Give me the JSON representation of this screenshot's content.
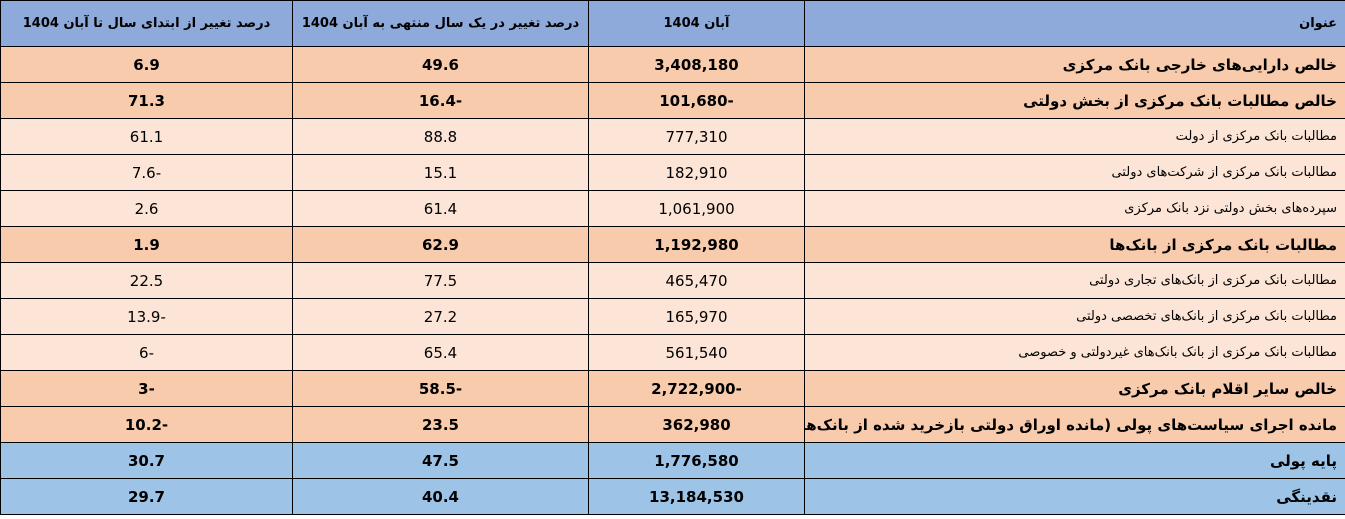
{
  "table": {
    "header": [
      "عنوان",
      "آبان 1404",
      "درصد تغییر در یک سال منتهی به آبان 1404",
      "درصد تغییر از ابتدای سال تا آبان 1404"
    ],
    "rows": [
      [
        "خالص دارایی‌های خارجی بانک مرکزی",
        "3,408,180",
        "49.6",
        "6.9"
      ],
      [
        "خالص مطالبات بانک مرکزی از بخش دولتی",
        "-101,680",
        "-16.4",
        "71.3"
      ],
      [
        "مطالبات بانک مرکزی از دولت",
        "777,310",
        "88.8",
        "61.1"
      ],
      [
        "مطالبات بانک مرکزی از شرکت‌های دولتی",
        "182,910",
        "15.1",
        "-7.6"
      ],
      [
        "سپرده‌های بخش دولتی نزد بانک مرکزی",
        "1,061,900",
        "61.4",
        "2.6"
      ],
      [
        "مطالبات بانک مرکزی از بانک‌ها",
        "1,192,980",
        "62.9",
        "1.9"
      ],
      [
        "مطالبات بانک مرکزی از بانک‌های تجاری دولتی",
        "465,470",
        "77.5",
        "22.5"
      ],
      [
        "مطالبات بانک مرکزی از بانک‌های تخصصی دولتی",
        "165,970",
        "27.2",
        "-13.9"
      ],
      [
        "مطالبات بانک مرکزی از بانک بانک‌های غیردولتی و خصوصی",
        "561,540",
        "65.4",
        "-6"
      ],
      [
        "خالص سایر اقلام بانک مرکزی",
        "-2,722,900",
        "-58.5",
        "-3"
      ],
      [
        "مانده اجرای سیاست‌های پولی (مانده اوراق دولتی بازخرید شده از بانک‌ها)",
        "362,980",
        "23.5",
        "-10.2"
      ],
      [
        "پایه پولی",
        "1,776,580",
        "47.5",
        "30.7"
      ],
      [
        "نقدینگی",
        "13,184,530",
        "40.4",
        "29.7"
      ]
    ]
  }
}
